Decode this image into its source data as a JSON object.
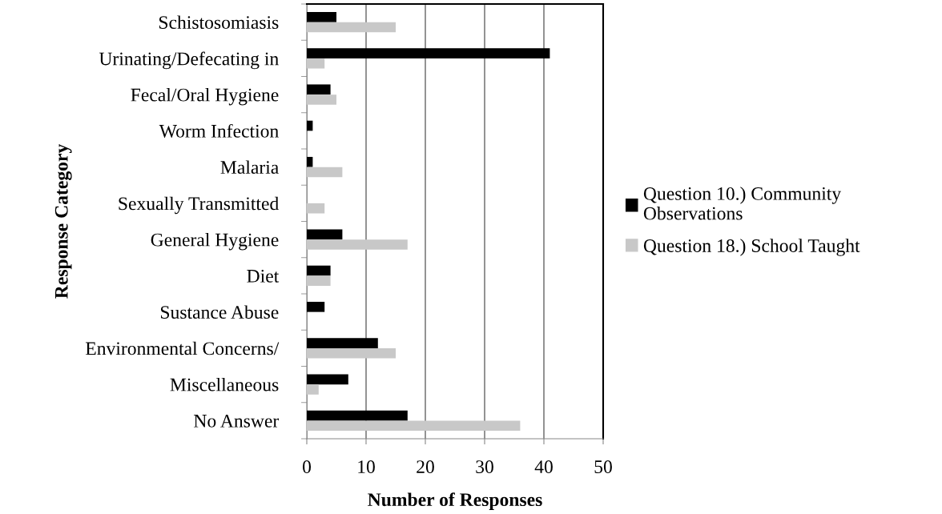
{
  "chart_data": {
    "type": "bar",
    "orientation": "horizontal",
    "xlabel": "Number of Responses",
    "ylabel": "Response Category",
    "categories": [
      "Schistosomiasis",
      "Urinating/Defecating in",
      "Fecal/Oral Hygiene",
      "Worm Infection",
      "Malaria",
      "Sexually Transmitted",
      "General Hygiene",
      "Diet",
      "Sustance Abuse",
      "Environmental Concerns/",
      "Miscellaneous",
      "No Answer"
    ],
    "series": [
      {
        "name": "Question 10.) Community Observations",
        "color": "#000000",
        "values": [
          5,
          41,
          4,
          1,
          1,
          0,
          6,
          4,
          3,
          12,
          7,
          17
        ]
      },
      {
        "name": "Question 18.) School Taught",
        "color": "#c8c8c8",
        "values": [
          15,
          3,
          5,
          0,
          6,
          3,
          17,
          4,
          0,
          15,
          2,
          36
        ]
      }
    ],
    "xlim": [
      0,
      50
    ],
    "xticks": [
      0,
      10,
      20,
      30,
      40,
      50
    ],
    "grid": "x",
    "legend": "right"
  }
}
